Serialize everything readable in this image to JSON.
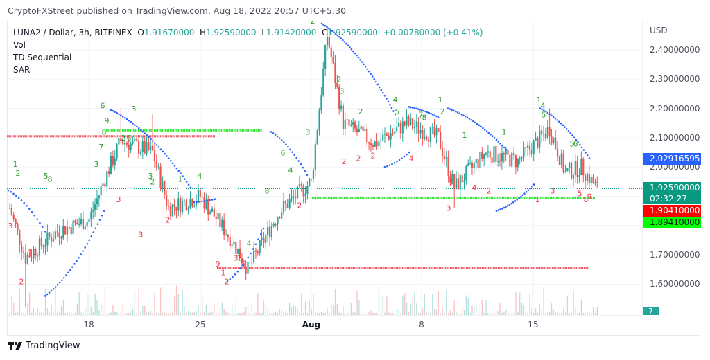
{
  "header": {
    "publisher_line": "CryptoFXStreet published on TradingView.com, Aug 18, 2022 20:57 UTC+5:30"
  },
  "legend": {
    "symbol": "LUNA2 / Dollar, 3h, BITFINEX",
    "open_label": "O",
    "open": "1.91670000",
    "high_label": "H",
    "high": "1.92590000",
    "low_label": "L",
    "low": "1.91420000",
    "close_label": "C",
    "close": "1.92590000",
    "change": "+0.00780000 (+0.41%)",
    "indicators": [
      "Vol",
      "TD Sequential",
      "SAR"
    ]
  },
  "price_axis": {
    "currency": "USD",
    "ticks": [
      {
        "label": "2.40000000",
        "value": 2.4
      },
      {
        "label": "2.30000000",
        "value": 2.3
      },
      {
        "label": "2.20000000",
        "value": 2.2
      },
      {
        "label": "2.10000000",
        "value": 2.1
      },
      {
        "label": "2.00000000",
        "value": 2.0
      },
      {
        "label": "1.70000000",
        "value": 1.7
      },
      {
        "label": "1.60000000",
        "value": 1.6
      }
    ],
    "tags": {
      "sar": {
        "label": "2.02916595",
        "color": "#2962ff"
      },
      "last_price": {
        "label": "1.92590000",
        "countdown": "02:32:27",
        "color": "#089981"
      },
      "red_level": {
        "label": "1.90410000",
        "color": "#ff0000"
      },
      "green_level": {
        "label": "1.89410000",
        "color": "#00ff00"
      },
      "volume": {
        "label": "7",
        "color": "#26a69a"
      }
    }
  },
  "time_axis": {
    "ticks": [
      {
        "label": "18",
        "x": 128
      },
      {
        "label": "25",
        "x": 289
      },
      {
        "label": "Aug",
        "x": 449,
        "bold": true
      },
      {
        "label": "8",
        "x": 608
      },
      {
        "label": "15",
        "x": 769
      }
    ]
  },
  "footer": {
    "brand": "TradingView"
  },
  "colors": {
    "up": "#26a69a",
    "down": "#ef5350",
    "td_up": "#2e9a2e",
    "td_down": "#f23645",
    "sar": "#2962ff",
    "support": "#00e600",
    "resistance": "#f23645"
  },
  "chart_data": {
    "type": "candlestick",
    "title": "LUNA2 / Dollar, 3h, BITFINEX",
    "xlabel": "",
    "ylabel": "USD",
    "ylim": [
      1.53,
      2.5
    ],
    "x_tick_labels": [
      "18",
      "25",
      "Aug",
      "8",
      "15"
    ],
    "y_tick_labels": [
      "2.40000000",
      "2.30000000",
      "2.20000000",
      "2.10000000",
      "2.00000000",
      "1.70000000",
      "1.60000000"
    ],
    "grid": true,
    "indicators": [
      "Vol",
      "TD Sequential",
      "SAR"
    ],
    "last_ohlc": {
      "open": 1.9167,
      "high": 1.9259,
      "low": 1.9142,
      "close": 1.9259,
      "change": 0.0078,
      "change_pct": 0.41
    },
    "horizontal_levels": [
      {
        "name": "resistance-upper",
        "price": 2.105,
        "color": "red",
        "x_range": [
          "Jul 12",
          "Jul 24"
        ]
      },
      {
        "name": "resistance-green",
        "price": 2.125,
        "color": "green",
        "x_range": [
          "Jul 19",
          "Jul 29"
        ]
      },
      {
        "name": "support-green",
        "price": 1.8941,
        "color": "green",
        "x_range": [
          "Jul 31",
          "Aug 18"
        ]
      },
      {
        "name": "support-red",
        "price": 1.655,
        "color": "red",
        "x_range": [
          "Jul 27",
          "Aug 18"
        ]
      }
    ],
    "price_path_approx": [
      {
        "date": "Jul 12",
        "price": 1.86
      },
      {
        "date": "Jul 13",
        "price": 1.69
      },
      {
        "date": "Jul 15",
        "price": 1.78
      },
      {
        "date": "Jul 17",
        "price": 1.82
      },
      {
        "date": "Jul 18",
        "price": 1.96
      },
      {
        "date": "Jul 19",
        "price": 2.09
      },
      {
        "date": "Jul 21",
        "price": 2.05
      },
      {
        "date": "Jul 22",
        "price": 1.86
      },
      {
        "date": "Jul 24",
        "price": 1.9
      },
      {
        "date": "Jul 26",
        "price": 1.75
      },
      {
        "date": "Jul 27",
        "price": 1.65
      },
      {
        "date": "Jul 29",
        "price": 1.85
      },
      {
        "date": "Jul 31",
        "price": 1.95
      },
      {
        "date": "Aug 1",
        "price": 2.45
      },
      {
        "date": "Aug 2",
        "price": 2.15
      },
      {
        "date": "Aug 4",
        "price": 2.08
      },
      {
        "date": "Aug 6",
        "price": 2.15
      },
      {
        "date": "Aug 8",
        "price": 2.1
      },
      {
        "date": "Aug 9",
        "price": 1.93
      },
      {
        "date": "Aug 11",
        "price": 2.05
      },
      {
        "date": "Aug 13",
        "price": 2.02
      },
      {
        "date": "Aug 15",
        "price": 2.13
      },
      {
        "date": "Aug 16",
        "price": 1.98
      },
      {
        "date": "Aug 17",
        "price": 2.0
      },
      {
        "date": "Aug 18",
        "price": 1.9259
      }
    ],
    "current_sar": 2.02916595,
    "last_volume": 7
  }
}
